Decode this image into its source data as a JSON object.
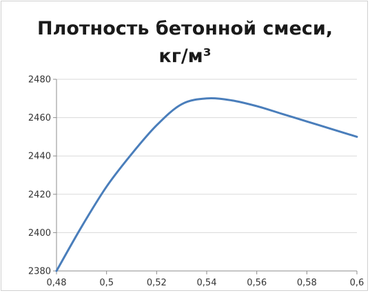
{
  "chart_data": {
    "type": "line",
    "title": [
      "Плотность бетонной смеси,",
      "кг/м³"
    ],
    "xlabel": "",
    "ylabel": "",
    "xlim": [
      0.48,
      0.6
    ],
    "ylim": [
      2380,
      2480
    ],
    "x_ticks": [
      {
        "value": 0.48,
        "label": "0,48"
      },
      {
        "value": 0.5,
        "label": "0,5"
      },
      {
        "value": 0.52,
        "label": "0,52"
      },
      {
        "value": 0.54,
        "label": "0,54"
      },
      {
        "value": 0.56,
        "label": "0,56"
      },
      {
        "value": 0.58,
        "label": "0,58"
      },
      {
        "value": 0.6,
        "label": "0,6"
      }
    ],
    "y_ticks": [
      {
        "value": 2380,
        "label": "2380"
      },
      {
        "value": 2400,
        "label": "2400"
      },
      {
        "value": 2420,
        "label": "2420"
      },
      {
        "value": 2440,
        "label": "2440"
      },
      {
        "value": 2460,
        "label": "2460"
      },
      {
        "value": 2480,
        "label": "2480"
      }
    ],
    "grid": "horizontal",
    "legend": "none",
    "series": [
      {
        "color": "#4a7ebb",
        "x": [
          0.48,
          0.49,
          0.5,
          0.51,
          0.52,
          0.53,
          0.54,
          0.55,
          0.56,
          0.57,
          0.58,
          0.59,
          0.6
        ],
        "y": [
          2380,
          2403,
          2424,
          2441,
          2456,
          2467,
          2470,
          2469,
          2466,
          2462,
          2458,
          2454,
          2450
        ]
      }
    ]
  }
}
